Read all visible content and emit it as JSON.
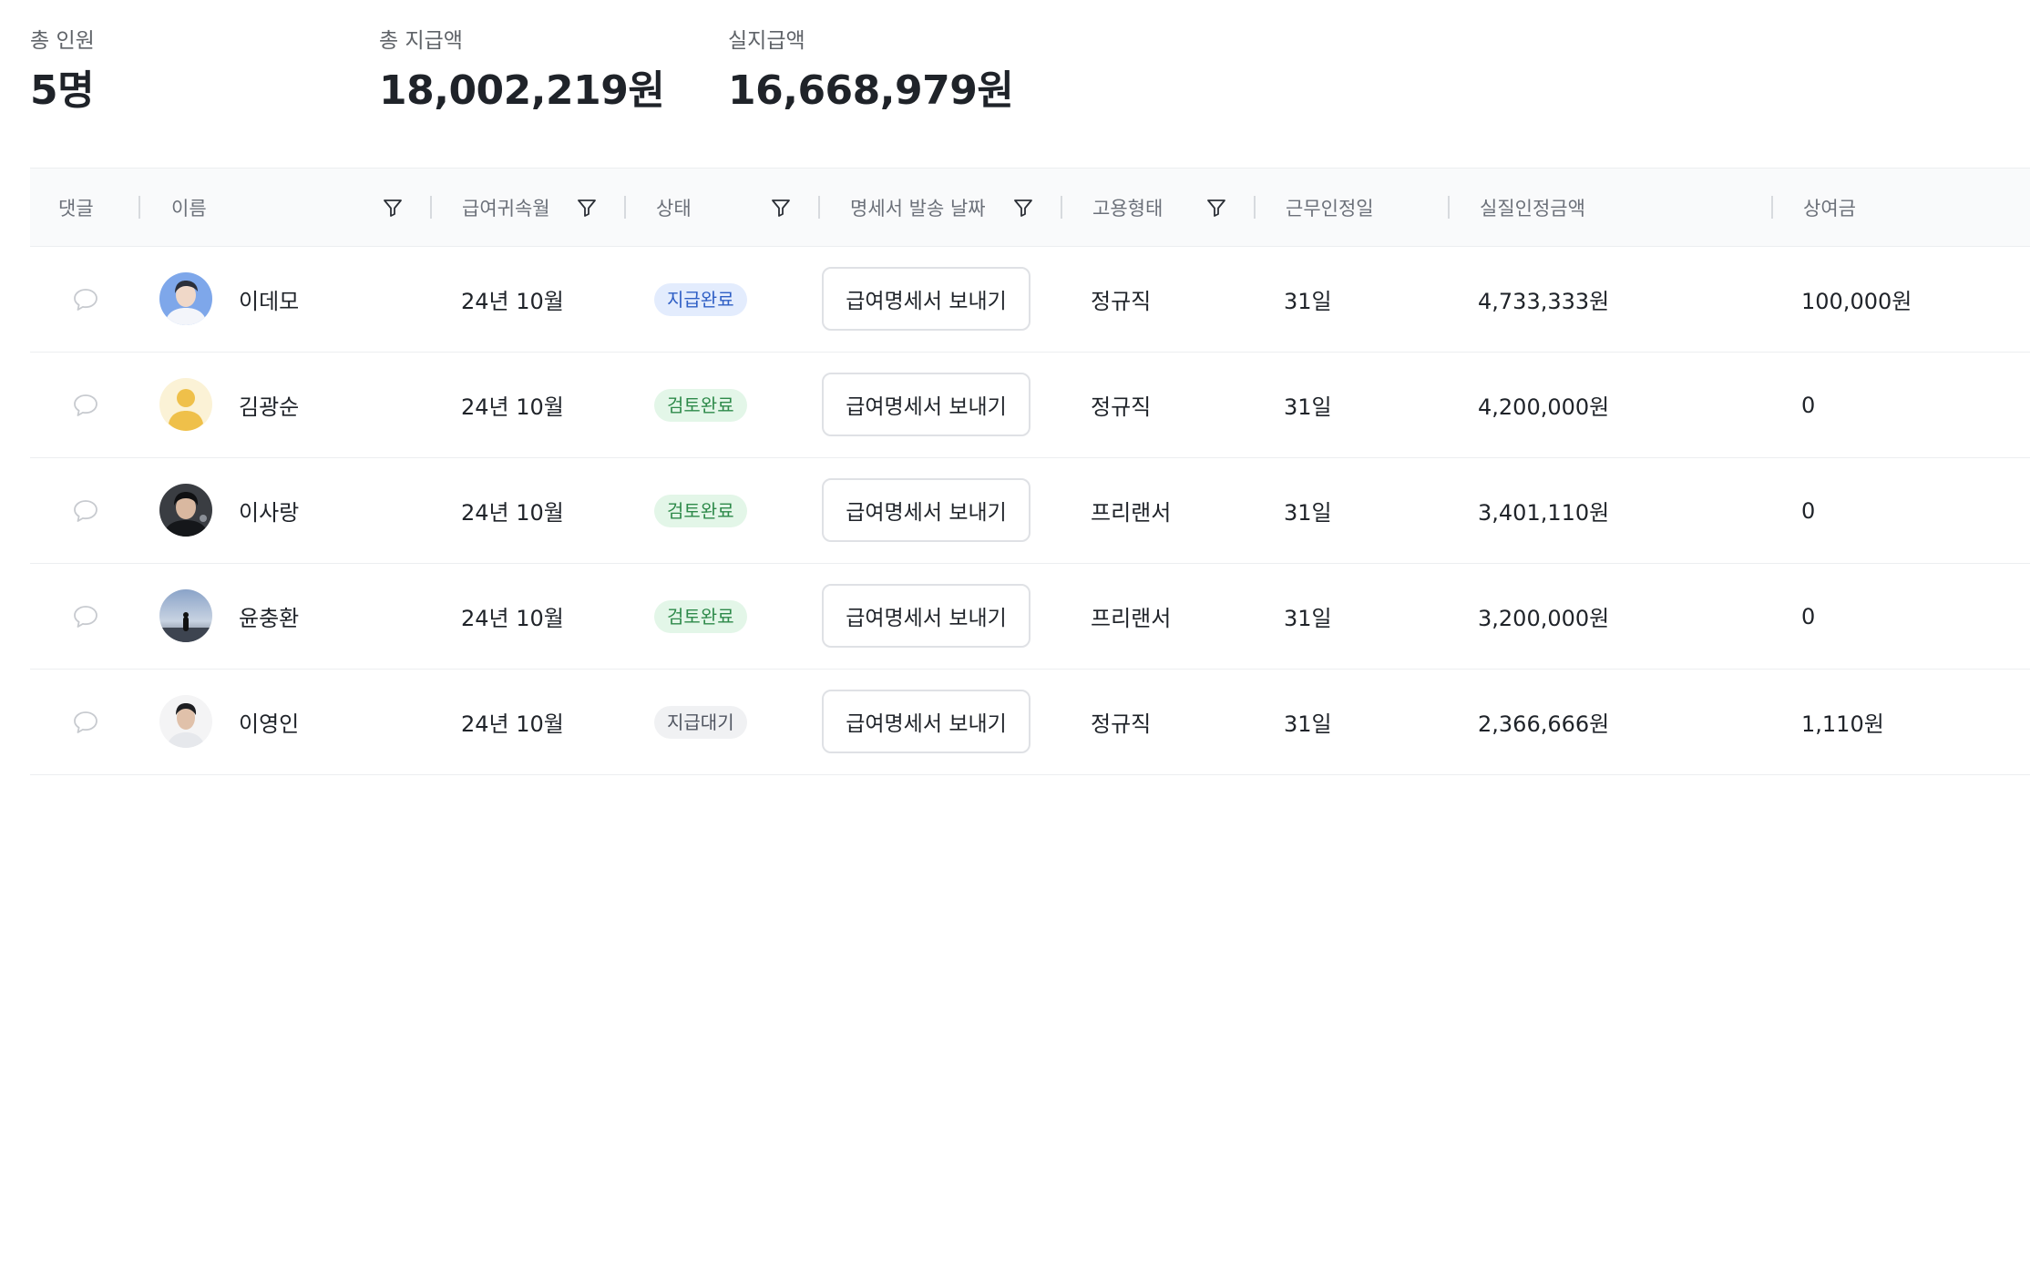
{
  "summary": {
    "headcount": {
      "label": "총 인원",
      "value": "5명"
    },
    "total_pay": {
      "label": "총 지급액",
      "value": "18,002,219원"
    },
    "net_pay": {
      "label": "실지급액",
      "value": "16,668,979원"
    }
  },
  "table": {
    "headers": {
      "comment": "댓글",
      "name": "이름",
      "pay_month": "급여귀속월",
      "status": "상태",
      "sent_date": "명세서 발송 날짜",
      "employment": "고용형태",
      "work_days": "근무인정일",
      "real_amount": "실질인정금액",
      "bonus": "상여금"
    },
    "send_button_label": "급여명세서 보내기",
    "rows": [
      {
        "name": "이데모",
        "month": "24년 10월",
        "status": "지급완료",
        "status_kind": "paid",
        "employment": "정규직",
        "days": "31일",
        "amount": "4,733,333원",
        "bonus": "100,000원",
        "avatar": "photo-blue"
      },
      {
        "name": "김광순",
        "month": "24년 10월",
        "status": "검토완료",
        "status_kind": "reviewed",
        "employment": "정규직",
        "days": "31일",
        "amount": "4,200,000원",
        "bonus": "0",
        "avatar": "default-yellow"
      },
      {
        "name": "이사랑",
        "month": "24년 10월",
        "status": "검토완료",
        "status_kind": "reviewed",
        "employment": "프리랜서",
        "days": "31일",
        "amount": "3,401,110원",
        "bonus": "0",
        "avatar": "photo-dark"
      },
      {
        "name": "윤충환",
        "month": "24년 10월",
        "status": "검토완료",
        "status_kind": "reviewed",
        "employment": "프리랜서",
        "days": "31일",
        "amount": "3,200,000원",
        "bonus": "0",
        "avatar": "photo-sky"
      },
      {
        "name": "이영인",
        "month": "24년 10월",
        "status": "지급대기",
        "status_kind": "pending",
        "employment": "정규직",
        "days": "31일",
        "amount": "2,366,666원",
        "bonus": "1,110원",
        "avatar": "photo-light"
      }
    ]
  },
  "colors": {
    "paid_bg": "#e3ecfd",
    "paid_text": "#2f5fc5",
    "reviewed_bg": "#e3f6e8",
    "reviewed_text": "#2e8a4a",
    "pending_bg": "#f0f1f3",
    "pending_text": "#505560"
  }
}
